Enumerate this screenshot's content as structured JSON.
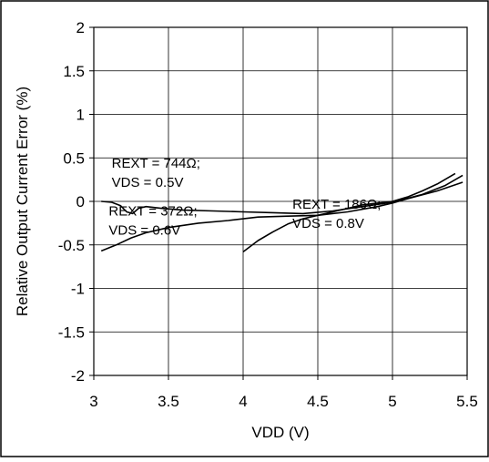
{
  "chart_data": {
    "type": "line",
    "title": "",
    "xlabel": "VDD (V)",
    "ylabel": "Relative Output Current Error (%)",
    "xlim": [
      3,
      5.5
    ],
    "ylim": [
      -2,
      2
    ],
    "xticks": [
      3,
      3.5,
      4,
      4.5,
      5,
      5.5
    ],
    "yticks": [
      2,
      1.5,
      1,
      0.5,
      0,
      -0.5,
      -1,
      -1.5,
      -2
    ],
    "xtick_labels": [
      "3",
      "3.5",
      "4",
      "4.5",
      "5",
      "5.5"
    ],
    "ytick_labels": [
      "2",
      "1.5",
      "1",
      "0.5",
      "0",
      "-0.5",
      "-1",
      "-1.5",
      "-2"
    ],
    "grid": true,
    "legend": "none",
    "series": [
      {
        "x": [
          3.05,
          3.12,
          3.18,
          3.22,
          3.26,
          3.3,
          3.35,
          3.45,
          3.6,
          3.8,
          4.0,
          4.2,
          4.4,
          4.6,
          4.8,
          5.0,
          5.2,
          5.35,
          5.47
        ],
        "y": [
          0.0,
          -0.01,
          -0.05,
          -0.12,
          -0.14,
          -0.08,
          -0.06,
          -0.08,
          -0.1,
          -0.11,
          -0.12,
          -0.13,
          -0.14,
          -0.11,
          -0.06,
          -0.01,
          0.08,
          0.18,
          0.3
        ]
      },
      {
        "x": [
          3.05,
          3.15,
          3.25,
          3.35,
          3.5,
          3.7,
          3.9,
          4.1,
          4.3,
          4.5,
          4.7,
          4.9,
          5.0,
          5.1,
          5.3,
          5.47
        ],
        "y": [
          -0.57,
          -0.5,
          -0.42,
          -0.36,
          -0.3,
          -0.25,
          -0.22,
          -0.18,
          -0.17,
          -0.16,
          -0.12,
          -0.06,
          -0.02,
          0.03,
          0.12,
          0.22
        ]
      },
      {
        "x": [
          4.0,
          4.1,
          4.2,
          4.3,
          4.4,
          4.5,
          4.6,
          4.7,
          4.8,
          4.9,
          5.0,
          5.1,
          5.2,
          5.3,
          5.42
        ],
        "y": [
          -0.58,
          -0.45,
          -0.35,
          -0.26,
          -0.2,
          -0.16,
          -0.12,
          -0.08,
          -0.04,
          -0.02,
          0.0,
          0.05,
          0.12,
          0.2,
          0.32
        ]
      }
    ],
    "annotations": [
      {
        "lines": [
          "REXT = 744Ω;",
          "VDS = 0.5V"
        ],
        "at_x": 3.12,
        "at_y": 0.2
      },
      {
        "lines": [
          "REXT = 372Ω;",
          "VDS = 0.6V"
        ],
        "at_x": 3.1,
        "at_y": -0.35
      },
      {
        "lines": [
          "REXT = 186Ω;",
          "VDS = 0.8V"
        ],
        "at_x": 4.33,
        "at_y": -0.27
      }
    ]
  }
}
